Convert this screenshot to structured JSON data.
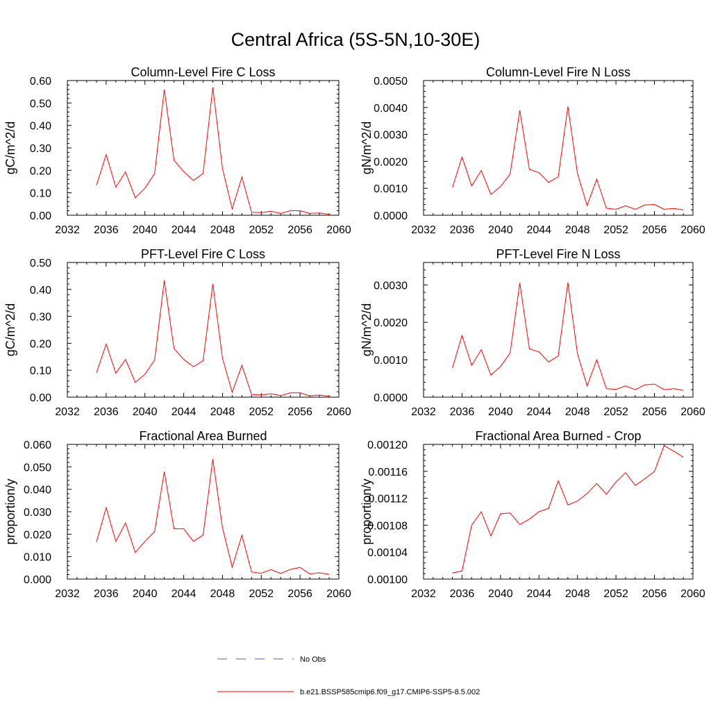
{
  "page_title": "Central Africa (5S-5N,10-30E)",
  "colors": {
    "model": "#ff0000",
    "obs": "#5a5ab8",
    "axis": "#000000"
  },
  "legend": {
    "obs_label": "No Obs",
    "model_label": "b.e21.BSSP585cmip6.f09_g17.CMIP6-SSP5-8.5.002"
  },
  "chart_data": [
    {
      "type": "line",
      "title": "Column-Level Fire C Loss",
      "ylabel": "gC/m^2/d",
      "xlim": [
        2032,
        2060
      ],
      "xticks": [
        2032,
        2036,
        2040,
        2044,
        2048,
        2052,
        2056,
        2060
      ],
      "ylim": [
        0,
        0.6
      ],
      "yticks": [
        "0.00",
        "0.10",
        "0.20",
        "0.30",
        "0.40",
        "0.50",
        "0.60"
      ],
      "x": [
        2035,
        2036,
        2037,
        2038,
        2039,
        2040,
        2041,
        2042,
        2043,
        2044,
        2045,
        2046,
        2047,
        2048,
        2049,
        2050,
        2051,
        2052,
        2053,
        2054,
        2055,
        2056,
        2057,
        2058,
        2059
      ],
      "series": [
        {
          "name": "b.e21.BSSP585cmip6.f09_g17.CMIP6-SSP5-8.5.002",
          "values": [
            0.133,
            0.27,
            0.125,
            0.193,
            0.078,
            0.12,
            0.186,
            0.56,
            0.245,
            0.194,
            0.155,
            0.186,
            0.57,
            0.208,
            0.028,
            0.17,
            0.013,
            0.012,
            0.018,
            0.008,
            0.02,
            0.02,
            0.008,
            0.01,
            0.004
          ]
        }
      ]
    },
    {
      "type": "line",
      "title": "Column-Level Fire N Loss",
      "ylabel": "gN/m^2/d",
      "xlim": [
        2032,
        2060
      ],
      "xticks": [
        2032,
        2036,
        2040,
        2044,
        2048,
        2052,
        2056,
        2060
      ],
      "ylim": [
        0,
        0.005
      ],
      "yticks": [
        "0.0000",
        "0.0010",
        "0.0020",
        "0.0030",
        "0.0040",
        "0.0050"
      ],
      "x": [
        2035,
        2036,
        2037,
        2038,
        2039,
        2040,
        2041,
        2042,
        2043,
        2044,
        2045,
        2046,
        2047,
        2048,
        2049,
        2050,
        2051,
        2052,
        2053,
        2054,
        2055,
        2056,
        2057,
        2058,
        2059
      ],
      "series": [
        {
          "name": "b.e21.BSSP585cmip6.f09_g17.CMIP6-SSP5-8.5.002",
          "values": [
            0.00103,
            0.00216,
            0.00109,
            0.00166,
            0.00077,
            0.00107,
            0.00153,
            0.00389,
            0.0017,
            0.00158,
            0.00122,
            0.00143,
            0.00403,
            0.00154,
            0.00036,
            0.00134,
            0.00026,
            0.00022,
            0.00035,
            0.00022,
            0.00038,
            0.0004,
            0.00022,
            0.00025,
            0.0002
          ]
        }
      ]
    },
    {
      "type": "line",
      "title": "PFT-Level Fire C Loss",
      "ylabel": "gC/m^2/d",
      "xlim": [
        2032,
        2060
      ],
      "xticks": [
        2032,
        2036,
        2040,
        2044,
        2048,
        2052,
        2056,
        2060
      ],
      "ylim": [
        0,
        0.5
      ],
      "yticks": [
        "0.00",
        "0.10",
        "0.20",
        "0.30",
        "0.40",
        "0.50"
      ],
      "x": [
        2035,
        2036,
        2037,
        2038,
        2039,
        2040,
        2041,
        2042,
        2043,
        2044,
        2045,
        2046,
        2047,
        2048,
        2049,
        2050,
        2051,
        2052,
        2053,
        2054,
        2055,
        2056,
        2057,
        2058,
        2059
      ],
      "series": [
        {
          "name": "b.e21.BSSP585cmip6.f09_g17.CMIP6-SSP5-8.5.002",
          "values": [
            0.09,
            0.197,
            0.089,
            0.14,
            0.055,
            0.085,
            0.138,
            0.433,
            0.18,
            0.14,
            0.113,
            0.135,
            0.42,
            0.145,
            0.018,
            0.118,
            0.01,
            0.008,
            0.013,
            0.006,
            0.016,
            0.016,
            0.005,
            0.008,
            0.003
          ]
        }
      ]
    },
    {
      "type": "line",
      "title": "PFT-Level Fire N Loss",
      "ylabel": "gN/m^2/d",
      "xlim": [
        2032,
        2060
      ],
      "xticks": [
        2032,
        2036,
        2040,
        2044,
        2048,
        2052,
        2056,
        2060
      ],
      "ylim": [
        0,
        0.0036
      ],
      "yticks": [
        "0.0000",
        "0.0010",
        "0.0020",
        "0.0030"
      ],
      "ytick_values": [
        0,
        0.001,
        0.002,
        0.003
      ],
      "x": [
        2035,
        2036,
        2037,
        2038,
        2039,
        2040,
        2041,
        2042,
        2043,
        2044,
        2045,
        2046,
        2047,
        2048,
        2049,
        2050,
        2051,
        2052,
        2053,
        2054,
        2055,
        2056,
        2057,
        2058,
        2059
      ],
      "series": [
        {
          "name": "b.e21.BSSP585cmip6.f09_g17.CMIP6-SSP5-8.5.002",
          "values": [
            0.00078,
            0.00165,
            0.00085,
            0.00127,
            0.00059,
            0.00082,
            0.00118,
            0.00305,
            0.00129,
            0.00121,
            0.00094,
            0.0011,
            0.00306,
            0.00116,
            0.0003,
            0.001,
            0.00023,
            0.00021,
            0.0003,
            0.0002,
            0.00033,
            0.00035,
            0.0002,
            0.00023,
            0.00018
          ]
        }
      ]
    },
    {
      "type": "line",
      "title": "Fractional Area Burned",
      "ylabel": "proportion/y",
      "xlim": [
        2032,
        2060
      ],
      "xticks": [
        2032,
        2036,
        2040,
        2044,
        2048,
        2052,
        2056,
        2060
      ],
      "ylim": [
        0,
        0.06
      ],
      "yticks": [
        "0.000",
        "0.010",
        "0.020",
        "0.030",
        "0.040",
        "0.050",
        "0.060"
      ],
      "x": [
        2035,
        2036,
        2037,
        2038,
        2039,
        2040,
        2041,
        2042,
        2043,
        2044,
        2045,
        2046,
        2047,
        2048,
        2049,
        2050,
        2051,
        2052,
        2053,
        2054,
        2055,
        2056,
        2057,
        2058,
        2059
      ],
      "series": [
        {
          "name": "b.e21.BSSP585cmip6.f09_g17.CMIP6-SSP5-8.5.002",
          "values": [
            0.0165,
            0.0318,
            0.0168,
            0.025,
            0.0118,
            0.0168,
            0.0212,
            0.0478,
            0.0224,
            0.0224,
            0.0168,
            0.0196,
            0.0534,
            0.0229,
            0.0053,
            0.0195,
            0.0032,
            0.0026,
            0.0042,
            0.0025,
            0.0043,
            0.0052,
            0.0023,
            0.0028,
            0.0021
          ]
        }
      ]
    },
    {
      "type": "line",
      "title": "Fractional Area Burned - Crop",
      "ylabel": "proportion/y",
      "xlim": [
        2032,
        2060
      ],
      "xticks": [
        2032,
        2036,
        2040,
        2044,
        2048,
        2052,
        2056,
        2060
      ],
      "ylim": [
        0.001,
        0.0012
      ],
      "yticks": [
        "0.00100",
        "0.00104",
        "0.00108",
        "0.00112",
        "0.00116",
        "0.00120"
      ],
      "x": [
        2035,
        2036,
        2037,
        2038,
        2039,
        2040,
        2041,
        2042,
        2043,
        2044,
        2045,
        2046,
        2047,
        2048,
        2049,
        2050,
        2051,
        2052,
        2053,
        2054,
        2055,
        2056,
        2057,
        2058,
        2059
      ],
      "series": [
        {
          "name": "b.e21.BSSP585cmip6.f09_g17.CMIP6-SSP5-8.5.002",
          "values": [
            0.001009,
            0.001012,
            0.00108,
            0.0011,
            0.001064,
            0.001097,
            0.001098,
            0.001081,
            0.001089,
            0.0011,
            0.001105,
            0.001146,
            0.00111,
            0.001116,
            0.001127,
            0.001142,
            0.001126,
            0.001144,
            0.001158,
            0.001139,
            0.001149,
            0.00116,
            0.001198,
            0.00119,
            0.001181
          ]
        }
      ]
    }
  ]
}
